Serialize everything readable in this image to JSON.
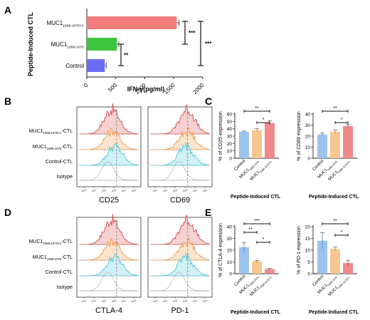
{
  "panel_letters": {
    "A": "A",
    "B": "B",
    "C": "C",
    "D": "D",
    "E": "E"
  },
  "colors": {
    "red": "#f27c7c",
    "green": "#3ec43e",
    "blue": "#6b6ef5",
    "light_blue": "#9cc3ec",
    "light_orange": "#f6c690",
    "light_red": "#f08a8a",
    "hist_red": "#d94a4a",
    "hist_orange": "#f0a050",
    "hist_cyan": "#4fc8dd",
    "hist_gray": "#999999",
    "dashed": "#888888"
  },
  "panelA": {
    "ylabel": "Peptide-Induced CTL",
    "xlabel": "IFN-γ(pg/ml)",
    "ticks": [
      "0",
      "500",
      "1000",
      "1500",
      "2000"
    ],
    "bars": [
      {
        "label_main": "MUC1",
        "label_sub": "1068-1076Y1",
        "value": 1550,
        "err": 40,
        "color": "#f27c7c"
      },
      {
        "label_main": "MUC1",
        "label_sub": "1068-1076",
        "value": 520,
        "err": 30,
        "color": "#3ec43e"
      },
      {
        "label_main": "Control",
        "label_sub": "",
        "value": 310,
        "err": 25,
        "color": "#6b6ef5"
      }
    ],
    "sig": [
      "***",
      "**",
      "***"
    ]
  },
  "histB": {
    "row_labels": [
      {
        "main": "MUC1",
        "sub": "1068-1076Y1",
        "suffix": "-CTL"
      },
      {
        "main": "MUC1",
        "sub": "1068-1076",
        "suffix": "-CTL"
      },
      {
        "main": "Control-CTL",
        "sub": "",
        "suffix": ""
      },
      {
        "main": "Isotype",
        "sub": "",
        "suffix": ""
      }
    ],
    "markers": [
      "CD25",
      "CD69"
    ],
    "ticks": [
      "10⁰",
      "10¹",
      "10²",
      "10³",
      "10⁴",
      "10⁵"
    ]
  },
  "histD": {
    "row_labels": [
      {
        "main": "MUC1",
        "sub": "1068-1076Y1",
        "suffix": "-CTL"
      },
      {
        "main": "MUC1",
        "sub": "1068-1076",
        "suffix": "-CTL"
      },
      {
        "main": "Control-CTL",
        "sub": "",
        "suffix": ""
      },
      {
        "main": "Isotype",
        "sub": "",
        "suffix": ""
      }
    ],
    "markers": [
      "CTLA-4",
      "PD-1"
    ],
    "ticks": [
      "10⁰",
      "10¹",
      "10²",
      "10³",
      "10⁴",
      "10⁵"
    ]
  },
  "groups": [
    {
      "main": "Control",
      "sub": ""
    },
    {
      "main": "MUC1",
      "sub": "1068-1076"
    },
    {
      "main": "MUC1",
      "sub": "1068-1076Y1"
    }
  ],
  "group_xlabel": "Peptide-Induced CTL",
  "chart_data": [
    {
      "type": "bar",
      "title": "",
      "ylabel": "IFN-γ(pg/ml)",
      "categories": [
        "MUC1 1068-1076Y1",
        "MUC1 1068-1076",
        "Control"
      ],
      "values": [
        1550,
        520,
        310
      ],
      "errors": [
        40,
        30,
        25
      ],
      "ylim": [
        0,
        2000
      ]
    },
    {
      "type": "bar",
      "ylabel": "% of CD25 expression",
      "categories": [
        "Control",
        "MUC1 1068-1076",
        "MUC1 1068-1076Y1"
      ],
      "values": [
        36,
        38,
        48
      ],
      "errors": [
        1,
        2,
        3
      ],
      "ylim": [
        0,
        60
      ],
      "ticks": [
        0,
        10,
        20,
        30,
        40,
        50,
        60
      ],
      "sig": [
        {
          "from": 0,
          "to": 2,
          "label": "**"
        },
        {
          "from": 1,
          "to": 2,
          "label": "*"
        }
      ]
    },
    {
      "type": "bar",
      "ylabel": "% of CD69 expression",
      "categories": [
        "Control",
        "MUC1 1068-1076",
        "MUC1 1068-1076Y1"
      ],
      "values": [
        21.5,
        24,
        29
      ],
      "errors": [
        1.5,
        1.5,
        1.5
      ],
      "ylim": [
        0,
        40
      ],
      "ticks": [
        0,
        10,
        20,
        30,
        40
      ],
      "sig": [
        {
          "from": 0,
          "to": 2,
          "label": "**"
        },
        {
          "from": 1,
          "to": 2,
          "label": "*"
        }
      ]
    },
    {
      "type": "bar",
      "ylabel": "% of CTLA-4 expression",
      "categories": [
        "Control",
        "MUC1 1068-1076",
        "MUC1 1068-1076Y1"
      ],
      "values": [
        22.5,
        10.5,
        4
      ],
      "errors": [
        4,
        0.8,
        0.5
      ],
      "ylim": [
        0,
        40
      ],
      "ticks": [
        0,
        10,
        20,
        30,
        40
      ],
      "sig": [
        {
          "from": 0,
          "to": 2,
          "label": "***"
        },
        {
          "from": 0,
          "to": 1,
          "label": "**"
        },
        {
          "from": 1,
          "to": 2,
          "label": "*"
        }
      ]
    },
    {
      "type": "bar",
      "ylabel": "% of PD-1 expression",
      "categories": [
        "Control",
        "MUC1 1068-1076",
        "MUC1 1068-1076Y1"
      ],
      "values": [
        14,
        10.5,
        4.5
      ],
      "errors": [
        3.5,
        0.8,
        1.2
      ],
      "ylim": [
        0,
        20
      ],
      "ticks": [
        0,
        5,
        10,
        15,
        20
      ],
      "sig": [
        {
          "from": 0,
          "to": 2,
          "label": "**"
        },
        {
          "from": 1,
          "to": 2,
          "label": "*"
        }
      ]
    }
  ]
}
